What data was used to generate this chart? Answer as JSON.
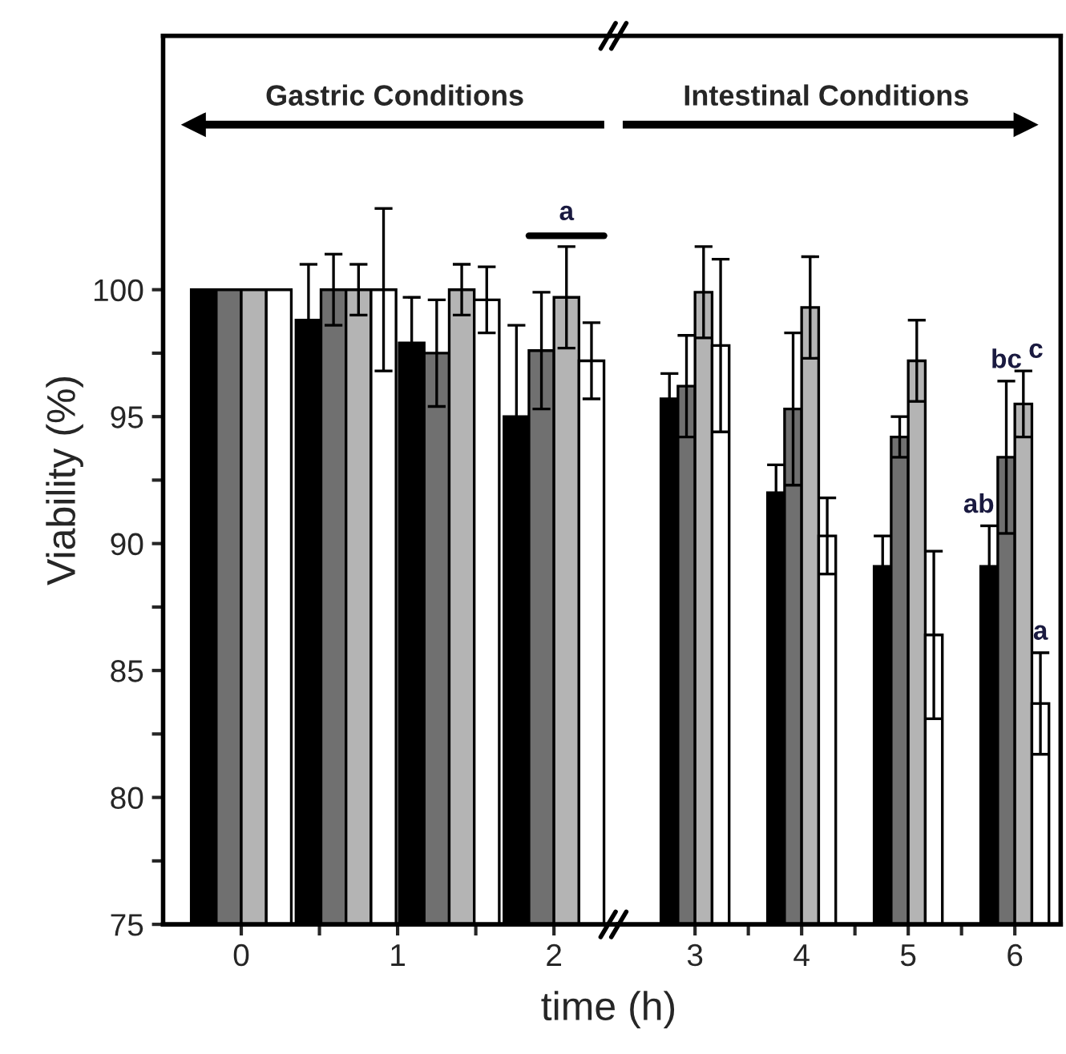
{
  "chart_data": [
    {
      "type": "bar",
      "xlabel": "time (h)",
      "ylabel": "Viability (%)",
      "x": [
        0,
        0.67,
        1.33,
        2
      ],
      "series": [
        {
          "color": "#000000",
          "values": [
            100,
            98.8,
            97.9,
            95.0
          ],
          "errors": [
            null,
            2.2,
            1.8,
            3.6
          ]
        },
        {
          "color": "#707070",
          "values": [
            100,
            100,
            97.5,
            97.6
          ],
          "errors": [
            null,
            1.4,
            2.1,
            2.3
          ]
        },
        {
          "color": "#b4b4b4",
          "values": [
            100,
            100,
            100,
            99.7
          ],
          "errors": [
            null,
            1.0,
            1.0,
            2.0
          ]
        },
        {
          "color": "#ffffff",
          "values": [
            100,
            100,
            99.6,
            97.2
          ],
          "errors": [
            null,
            3.2,
            1.3,
            1.5
          ]
        }
      ],
      "xlim": [
        -0.5,
        2.35
      ],
      "xticks": [
        0,
        {
          "value": 0.5,
          "label": null
        },
        1,
        {
          "value": 1.5,
          "label": null
        },
        2
      ],
      "ylim": [
        75,
        110
      ],
      "yticks": [
        75,
        {
          "value": 77.5,
          "label": null
        },
        80,
        {
          "value": 82.5,
          "label": null
        },
        85,
        {
          "value": 87.5,
          "label": null
        },
        90,
        {
          "value": 92.5,
          "label": null
        },
        95,
        {
          "value": 97.5,
          "label": null
        },
        100
      ],
      "annotations": [
        "Gastric Conditions",
        "a"
      ],
      "grid": false
    },
    {
      "type": "bar",
      "x": [
        3,
        4,
        5,
        6
      ],
      "series": [
        {
          "color": "#000000",
          "values": [
            95.7,
            92.0,
            89.1,
            89.1
          ],
          "errors": [
            1.0,
            1.1,
            1.2,
            1.6
          ]
        },
        {
          "color": "#707070",
          "values": [
            96.2,
            95.3,
            94.2,
            93.4
          ],
          "errors": [
            2.0,
            3.0,
            0.8,
            3.0
          ]
        },
        {
          "color": "#b4b4b4",
          "values": [
            99.9,
            99.3,
            97.2,
            95.5
          ],
          "errors": [
            1.8,
            2.0,
            1.6,
            1.3
          ]
        },
        {
          "color": "#ffffff",
          "values": [
            97.8,
            90.3,
            86.4,
            83.7
          ],
          "errors": [
            3.4,
            1.5,
            3.3,
            2.0
          ]
        }
      ],
      "xlim": [
        2.28,
        6.43
      ],
      "xticks": [
        3,
        {
          "value": 3.5,
          "label": null
        },
        4,
        {
          "value": 4.5,
          "label": null
        },
        5,
        {
          "value": 5.5,
          "label": null
        },
        6
      ],
      "ylim": [
        75,
        110
      ],
      "tick_labels": "x",
      "annotations": [
        "Intestinal Conditions",
        "ab",
        "bc",
        "c",
        "a"
      ],
      "grid": false
    }
  ]
}
